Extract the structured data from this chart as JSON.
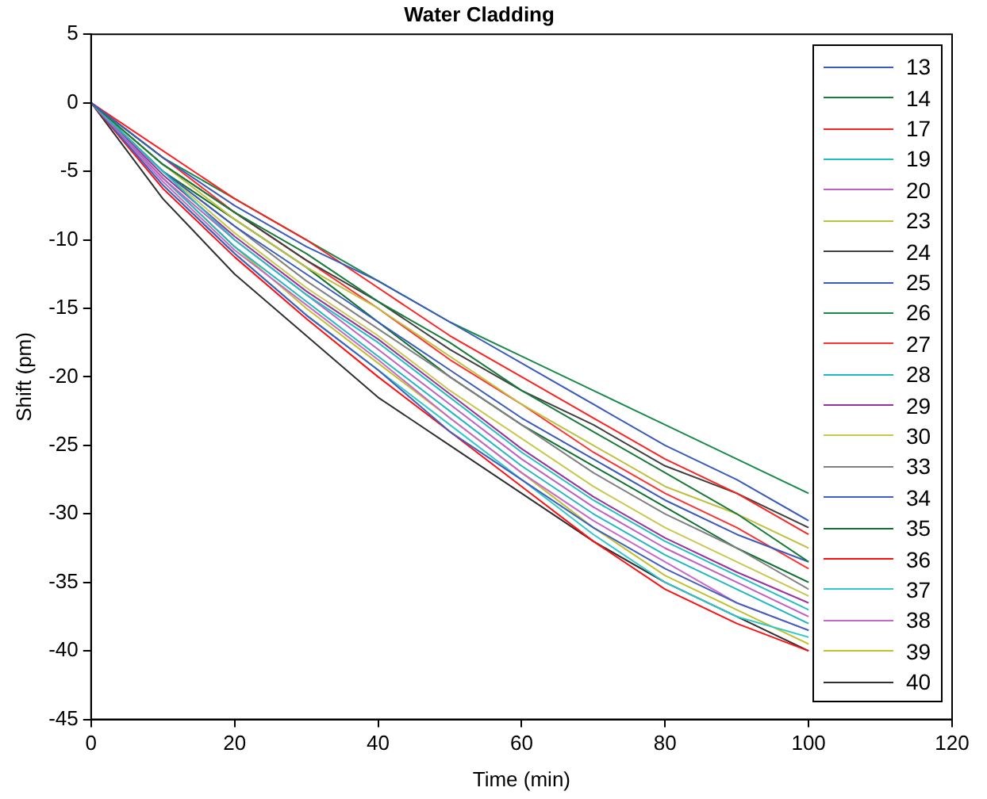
{
  "chart_data": {
    "type": "line",
    "title": "Water Cladding",
    "xlabel": "Time (min)",
    "ylabel": "Shift (pm)",
    "x": [
      0,
      10,
      20,
      30,
      40,
      50,
      60,
      70,
      80,
      90,
      100
    ],
    "xlim": [
      0,
      120
    ],
    "xticks": [
      0,
      20,
      40,
      60,
      80,
      100,
      120
    ],
    "ylim": [
      -45,
      5
    ],
    "yticks": [
      -45,
      -40,
      -35,
      -30,
      -25,
      -20,
      -15,
      -10,
      -5,
      0,
      5
    ],
    "grid": false,
    "legend": "top right",
    "marker": "none",
    "line_style": "solid",
    "series": [
      {
        "name": "13",
        "color": "#3a5bbd",
        "values": [
          0,
          -4,
          -7.5,
          -10.5,
          -13,
          -16,
          -19,
          -22,
          -25,
          -27.5,
          -30.5
        ]
      },
      {
        "name": "14",
        "color": "#1a7a3a",
        "values": [
          0,
          -4.5,
          -8,
          -11,
          -14.5,
          -17.5,
          -21,
          -24,
          -27,
          -30,
          -33.5
        ]
      },
      {
        "name": "17",
        "color": "#ff2020",
        "values": [
          0,
          -3.5,
          -7,
          -10,
          -13.5,
          -17,
          -20,
          -23,
          -26,
          -28.5,
          -31.5
        ]
      },
      {
        "name": "19",
        "color": "#20c0c0",
        "values": [
          0,
          -5,
          -10,
          -14,
          -17.5,
          -21.5,
          -25.5,
          -29,
          -32,
          -34.5,
          -37
        ]
      },
      {
        "name": "20",
        "color": "#c060c0",
        "values": [
          0,
          -5.5,
          -10,
          -14,
          -18,
          -22,
          -26,
          -29.5,
          -32.5,
          -35,
          -37.5
        ]
      },
      {
        "name": "23",
        "color": "#c0c040",
        "values": [
          0,
          -4.5,
          -8.5,
          -12,
          -15,
          -18.5,
          -22,
          -25,
          -28,
          -30,
          -32.5
        ]
      },
      {
        "name": "24",
        "color": "#404040",
        "values": [
          0,
          -4.5,
          -8,
          -11.5,
          -14.5,
          -18,
          -21,
          -23.5,
          -26.5,
          -28.5,
          -31
        ]
      },
      {
        "name": "25",
        "color": "#3a5bbd",
        "values": [
          0,
          -5,
          -9,
          -12.5,
          -16,
          -19.5,
          -23,
          -26,
          -29,
          -31.5,
          -33.5
        ]
      },
      {
        "name": "26",
        "color": "#1a8a4a",
        "values": [
          0,
          -4,
          -7,
          -10,
          -13,
          -16,
          -18.5,
          -21,
          -23.5,
          -26,
          -28.5
        ]
      },
      {
        "name": "27",
        "color": "#ff3030",
        "values": [
          0,
          -4,
          -8,
          -11.5,
          -15,
          -18.75,
          -22,
          -25.5,
          -28.5,
          -31,
          -34
        ]
      },
      {
        "name": "28",
        "color": "#20b8c0",
        "values": [
          0,
          -5.5,
          -10.5,
          -14.5,
          -18.5,
          -22.5,
          -26.5,
          -30,
          -33,
          -35.5,
          -38
        ]
      },
      {
        "name": "29",
        "color": "#9932a0",
        "values": [
          0,
          -5.25,
          -9.75,
          -13.75,
          -17.25,
          -21.25,
          -25.25,
          -28.75,
          -31.75,
          -34.25,
          -36.5
        ]
      },
      {
        "name": "30",
        "color": "#c8c850",
        "values": [
          0,
          -5,
          -9.5,
          -13.5,
          -17,
          -21,
          -24.5,
          -28,
          -31,
          -33.5,
          -36
        ]
      },
      {
        "name": "33",
        "color": "#808080",
        "values": [
          0,
          -5,
          -9,
          -13,
          -16.5,
          -20,
          -23.5,
          -27,
          -30,
          -32.5,
          -35.5
        ]
      },
      {
        "name": "34",
        "color": "#4060c0",
        "values": [
          0,
          -6,
          -11,
          -15.5,
          -19.5,
          -24,
          -27.5,
          -31,
          -34,
          -36.5,
          -38.5
        ]
      },
      {
        "name": "35",
        "color": "#107030",
        "values": [
          0,
          -5,
          -8.5,
          -12,
          -16,
          -20,
          -23.5,
          -26.5,
          -29.5,
          -32.5,
          -35
        ]
      },
      {
        "name": "36",
        "color": "#ff1010",
        "values": [
          0,
          -6.25,
          -11.25,
          -15.75,
          -20,
          -24,
          -28,
          -32,
          -35.5,
          -38,
          -40
        ]
      },
      {
        "name": "37",
        "color": "#30c8c8",
        "values": [
          0,
          -6,
          -11,
          -15.5,
          -19.5,
          -23.5,
          -27.5,
          -31.5,
          -35,
          -37.5,
          -39
        ]
      },
      {
        "name": "38",
        "color": "#c868c8",
        "values": [
          0,
          -5.75,
          -10.75,
          -14.75,
          -18.75,
          -23,
          -27,
          -30.5,
          -33.5,
          -36.5,
          -38.5
        ]
      },
      {
        "name": "39",
        "color": "#c0c030",
        "values": [
          0,
          -5.5,
          -10.5,
          -15,
          -19,
          -23,
          -27,
          -31,
          -34.5,
          -37,
          -39.5
        ]
      },
      {
        "name": "40",
        "color": "#303030",
        "values": [
          0,
          -7,
          -12.5,
          -17,
          -21.5,
          -25,
          -28.5,
          -32,
          -35,
          -37.5,
          -40
        ]
      }
    ]
  }
}
